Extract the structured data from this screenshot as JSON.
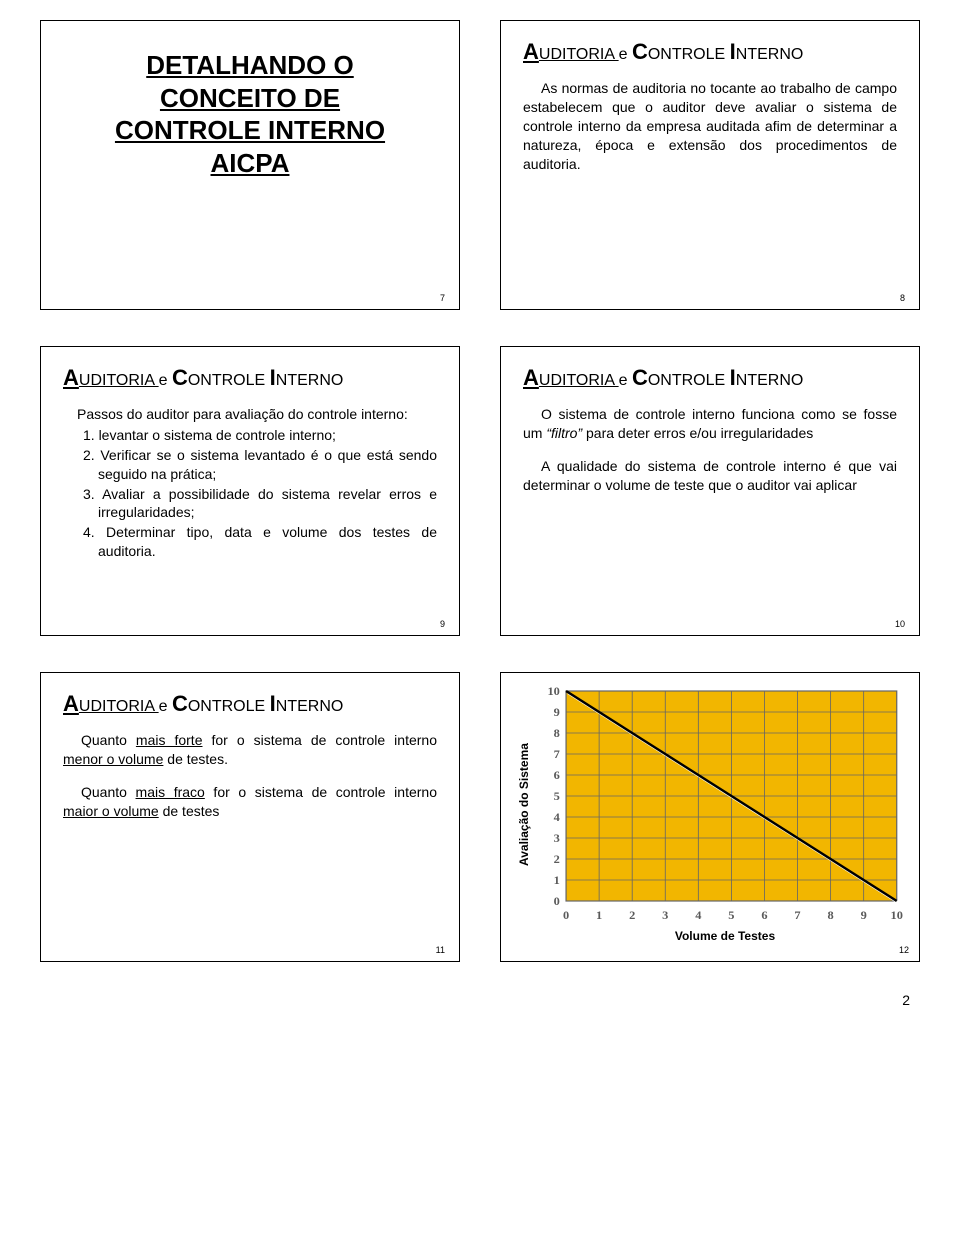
{
  "page_number": "2",
  "slides": {
    "s7": {
      "title_lines": [
        "DETALHANDO O",
        "CONCEITO DE",
        "CONTROLE INTERNO",
        "AICPA"
      ],
      "num": "7"
    },
    "s8": {
      "heading_parts": {
        "a": "A",
        "uditoria": "UDITORIA ",
        "e": "e ",
        "c": "C",
        "ontrole": "ONTROLE ",
        "i": "I",
        "nterno": "NTERNO"
      },
      "body": "As normas de auditoria no tocante ao trabalho de campo estabelecem que o auditor deve avaliar o sistema de controle interno da empresa auditada afim de determinar a natureza, época e extensão dos procedimentos de auditoria.",
      "num": "8"
    },
    "s9": {
      "intro": "Passos do auditor para avaliação do controle interno:",
      "items": [
        "1. levantar o sistema de controle interno;",
        "2. Verificar se o sistema levantado é o que está sendo seguido na prática;",
        "3. Avaliar a possibilidade do sistema revelar erros e irregularidades;",
        "4. Determinar tipo, data e volume dos testes de auditoria."
      ],
      "num": "9"
    },
    "s10": {
      "p1_a": "O sistema de controle interno funciona como se fosse um ",
      "p1_q": "“filtro”",
      "p1_b": " para deter erros e/ou irregularidades",
      "p2": "A qualidade do sistema de controle interno é que vai determinar o volume de teste que o auditor vai aplicar",
      "num": "10"
    },
    "s11": {
      "p1_a": "Quanto ",
      "p1_u1": "mais forte",
      "p1_b": " for o sistema de controle interno ",
      "p1_u2": "menor o volume",
      "p1_c": " de testes.",
      "p2_a": "Quanto ",
      "p2_u1": "mais fraco",
      "p2_b": " for o sistema de controle interno ",
      "p2_u2": "maior o volume",
      "p2_c": " de testes",
      "num": "11"
    },
    "s12": {
      "ylabel": "Avaliação do Sistema",
      "xlabel": "Volume de Testes",
      "num": "12",
      "chart": {
        "type": "line",
        "background_color": "#f2b600",
        "grid_color": "#666666",
        "line_color": "#000000",
        "shadow_color": "#ffffff",
        "xlim": [
          0,
          10
        ],
        "ylim": [
          0,
          10
        ],
        "xticks": [
          "0",
          "1",
          "2",
          "3",
          "4",
          "5",
          "6",
          "7",
          "8",
          "9",
          "10"
        ],
        "yticks": [
          "0",
          "1",
          "2",
          "3",
          "4",
          "5",
          "6",
          "7",
          "8",
          "9",
          "10"
        ],
        "tick_fontsize": 12,
        "tick_color": "#5a5a5a",
        "line_points": [
          [
            0,
            10
          ],
          [
            10,
            0
          ]
        ]
      }
    }
  }
}
